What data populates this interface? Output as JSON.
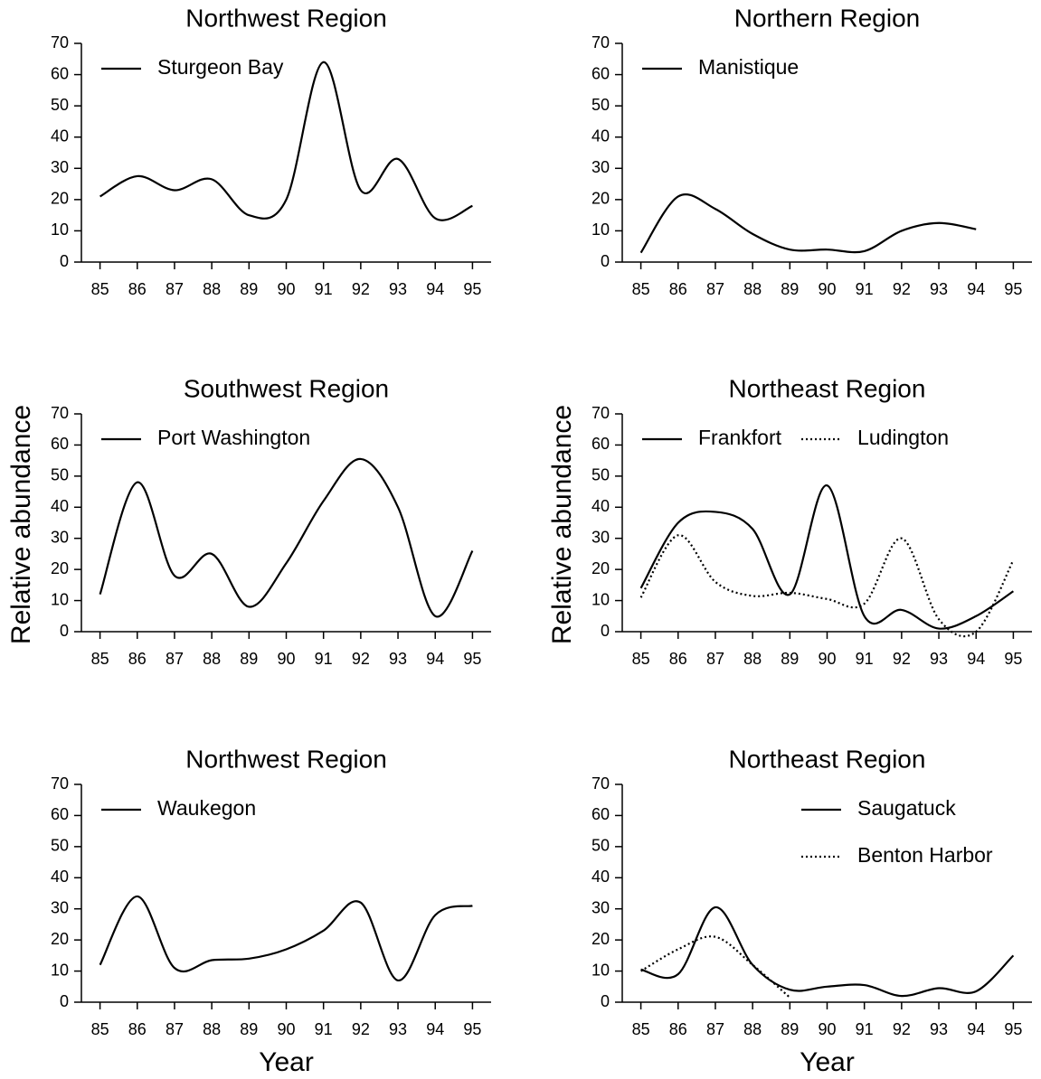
{
  "chart_data": [
    {
      "type": "line",
      "title": "Northwest Region",
      "x": [
        85,
        86,
        87,
        88,
        89,
        90,
        91,
        92,
        93,
        94,
        95
      ],
      "series": [
        {
          "name": "Sturgeon Bay",
          "color": "#000000",
          "style": "solid",
          "values": [
            21,
            27.5,
            23,
            26.5,
            15,
            20,
            64,
            23,
            33,
            14,
            18
          ]
        }
      ],
      "xlim": [
        84.5,
        95.5
      ],
      "xticks": [
        85,
        86,
        87,
        88,
        89,
        90,
        91,
        92,
        93,
        94,
        95
      ],
      "ylim": [
        0,
        70
      ],
      "yticks": [
        0,
        10,
        20,
        30,
        40,
        50,
        60,
        70
      ],
      "legend": "upper left"
    },
    {
      "type": "line",
      "title": "Northern Region",
      "x": [
        85,
        86,
        87,
        88,
        89,
        90,
        91,
        92,
        93,
        94,
        95
      ],
      "series": [
        {
          "name": "Manistique",
          "color": "#000000",
          "style": "solid",
          "values": [
            3,
            21,
            17,
            9,
            4,
            4,
            3.5,
            10,
            12.5,
            10.5,
            null
          ]
        }
      ],
      "xlim": [
        84.5,
        95.5
      ],
      "xticks": [
        85,
        86,
        87,
        88,
        89,
        90,
        91,
        92,
        93,
        94,
        95
      ],
      "ylim": [
        0,
        70
      ],
      "yticks": [
        0,
        10,
        20,
        30,
        40,
        50,
        60,
        70
      ],
      "legend": "upper left"
    },
    {
      "type": "line",
      "title": "Southwest Region",
      "ylabel": "Relative abundance",
      "x": [
        85,
        86,
        87,
        88,
        89,
        90,
        91,
        92,
        93,
        94,
        95
      ],
      "series": [
        {
          "name": "Port Washington",
          "color": "#000000",
          "style": "solid",
          "values": [
            12,
            48,
            18,
            25,
            8,
            22,
            42,
            55.5,
            40,
            5,
            26
          ]
        }
      ],
      "xlim": [
        84.5,
        95.5
      ],
      "xticks": [
        85,
        86,
        87,
        88,
        89,
        90,
        91,
        92,
        93,
        94,
        95
      ],
      "ylim": [
        0,
        70
      ],
      "yticks": [
        0,
        10,
        20,
        30,
        40,
        50,
        60,
        70
      ],
      "legend": "upper left"
    },
    {
      "type": "line",
      "title": "Northeast Region",
      "ylabel": "Relative abundance",
      "x": [
        85,
        86,
        87,
        88,
        89,
        90,
        91,
        92,
        93,
        94,
        95
      ],
      "series": [
        {
          "name": "Frankfort",
          "color": "#000000",
          "style": "solid",
          "values": [
            14,
            35,
            38.5,
            33,
            12,
            47,
            5,
            7,
            1,
            5,
            13
          ]
        },
        {
          "name": "Ludington",
          "color": "#000000",
          "style": "dotted",
          "values": [
            11,
            31,
            16,
            11.5,
            12.5,
            10.5,
            9,
            30,
            4,
            0,
            23
          ]
        }
      ],
      "xlim": [
        84.5,
        95.5
      ],
      "xticks": [
        85,
        86,
        87,
        88,
        89,
        90,
        91,
        92,
        93,
        94,
        95
      ],
      "ylim": [
        0,
        70
      ],
      "yticks": [
        0,
        10,
        20,
        30,
        40,
        50,
        60,
        70
      ],
      "legend": "upper left"
    },
    {
      "type": "line",
      "title": "Northwest Region",
      "xlabel": "Year",
      "x": [
        85,
        86,
        87,
        88,
        89,
        90,
        91,
        92,
        93,
        94,
        95
      ],
      "series": [
        {
          "name": "Waukegon",
          "color": "#000000",
          "style": "solid",
          "values": [
            12,
            34,
            11,
            13.5,
            14,
            17,
            23,
            32,
            7,
            28,
            31
          ]
        }
      ],
      "xlim": [
        84.5,
        95.5
      ],
      "xticks": [
        85,
        86,
        87,
        88,
        89,
        90,
        91,
        92,
        93,
        94,
        95
      ],
      "ylim": [
        0,
        70
      ],
      "yticks": [
        0,
        10,
        20,
        30,
        40,
        50,
        60,
        70
      ],
      "legend": "upper left"
    },
    {
      "type": "line",
      "title": "Northeast Region",
      "xlabel": "Year",
      "x": [
        85,
        86,
        87,
        88,
        89,
        90,
        91,
        92,
        93,
        94,
        95
      ],
      "series": [
        {
          "name": "Saugatuck",
          "color": "#000000",
          "style": "solid",
          "values": [
            10.5,
            9,
            30.5,
            12,
            4,
            5,
            5.5,
            2,
            4.5,
            3.5,
            15
          ]
        },
        {
          "name": "Benton Harbor",
          "color": "#000000",
          "style": "dotted",
          "values": [
            10,
            17,
            21,
            12,
            1.5,
            null,
            null,
            null,
            null,
            null,
            null
          ]
        }
      ],
      "xlim": [
        84.5,
        95.5
      ],
      "xticks": [
        85,
        86,
        87,
        88,
        89,
        90,
        91,
        92,
        93,
        94,
        95
      ],
      "ylim": [
        0,
        70
      ],
      "yticks": [
        0,
        10,
        20,
        30,
        40,
        50,
        60,
        70
      ],
      "legend": "upper right"
    }
  ]
}
